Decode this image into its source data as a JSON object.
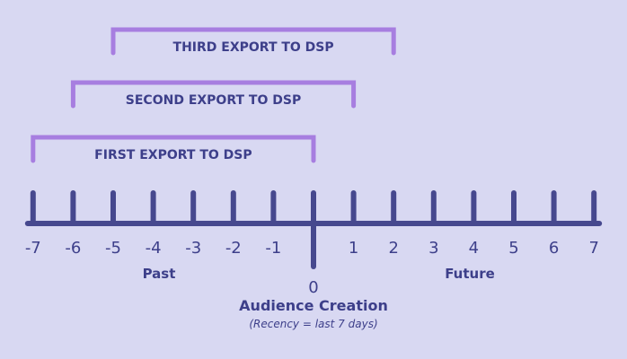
{
  "colors": {
    "background": "#d8d8f2",
    "axis": "#46488e",
    "bracket": "#a77ee0",
    "text": "#3d3f8a"
  },
  "axis": {
    "ticks": [
      -7,
      -6,
      -5,
      -4,
      -3,
      -2,
      -1,
      1,
      2,
      3,
      4,
      5,
      6,
      7
    ],
    "tick_labels": [
      "-7",
      "-6",
      "-5",
      "-4",
      "-3",
      "-2",
      "-1",
      "1",
      "2",
      "3",
      "4",
      "5",
      "6",
      "7"
    ],
    "zero_label": "0",
    "zero_title": "Audience Creation",
    "zero_note": "(Recency = last 7 days)",
    "past_label": "Past",
    "future_label": "Future"
  },
  "exports": [
    {
      "label": "FIRST EXPORT TO DSP",
      "start": -7,
      "end": 0
    },
    {
      "label": "SECOND EXPORT TO DSP",
      "start": -6,
      "end": 1
    },
    {
      "label": "THIRD EXPORT TO DSP",
      "start": -5,
      "end": 2
    }
  ]
}
